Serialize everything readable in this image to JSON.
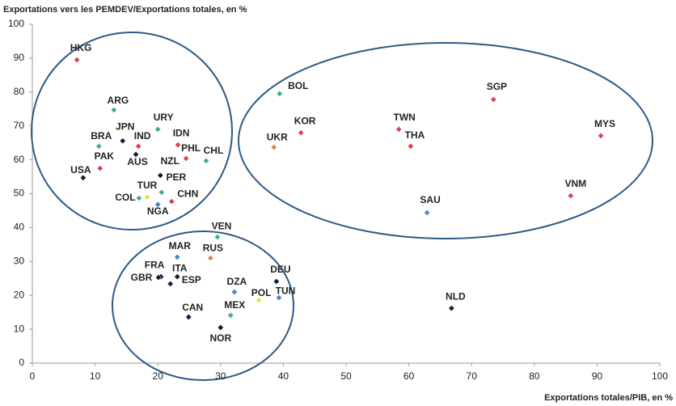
{
  "chart_data": {
    "type": "scatter",
    "y_title": "Exportations vers les PEMDEV/Exportations totales, en %",
    "x_title": "Exportations totales/PIB, en %",
    "xlim": [
      0,
      100
    ],
    "ylim": [
      0,
      100
    ],
    "xticks": [
      0,
      10,
      20,
      30,
      40,
      50,
      60,
      70,
      80,
      90,
      100
    ],
    "yticks": [
      0,
      10,
      20,
      30,
      40,
      50,
      60,
      70,
      80,
      90,
      100
    ],
    "labels": [
      "HKG",
      "ARG",
      "URY",
      "JPN",
      "IND",
      "BRA",
      "IDN",
      "PHL",
      "CHL",
      "AUS",
      "NZL",
      "PAK",
      "USA",
      "PER",
      "TUR",
      "COL",
      "CHN",
      "NGA",
      "BOL",
      "KOR",
      "UKR",
      "TWN",
      "THA",
      "SGP",
      "MYS",
      "VNM",
      "SAU",
      "VEN",
      "MAR",
      "RUS",
      "FRA",
      "GBR",
      "ITA",
      "ESP",
      "DZA",
      "DEU",
      "POL",
      "TUN",
      "CAN",
      "MEX",
      "NOR",
      "NLD"
    ],
    "x": [
      7.1,
      13.0,
      20.0,
      14.4,
      16.9,
      10.6,
      23.2,
      24.5,
      27.7,
      16.5,
      20.4,
      10.8,
      8.1,
      20.6,
      18.3,
      17.0,
      22.2,
      20.0,
      39.4,
      42.8,
      38.5,
      58.4,
      60.3,
      73.5,
      90.6,
      85.8,
      62.9,
      29.5,
      23.1,
      28.4,
      20.5,
      20.1,
      23.1,
      22.0,
      32.2,
      38.9,
      36.1,
      39.3,
      24.9,
      31.6,
      30.0,
      66.8
    ],
    "values": [
      89.5,
      74.7,
      69.0,
      65.6,
      64.0,
      64.0,
      64.4,
      60.4,
      59.7,
      61.6,
      55.4,
      57.5,
      54.7,
      50.4,
      49.0,
      48.7,
      47.7,
      46.8,
      79.5,
      68.0,
      63.7,
      69.0,
      64.0,
      77.8,
      67.1,
      49.4,
      44.4,
      37.2,
      31.3,
      31.0,
      25.5,
      25.3,
      25.5,
      23.4,
      21.0,
      24.1,
      18.6,
      19.3,
      13.6,
      14.1,
      10.5,
      16.2
    ],
    "colors": [
      "#d9434e",
      "#3fae8f",
      "#3fae8f",
      "#0d1c3d",
      "#d9434e",
      "#3fae8f",
      "#d9434e",
      "#d9434e",
      "#3fae8f",
      "#0d1c3d",
      "#0d1c3d",
      "#d9434e",
      "#0d1c3d",
      "#3fae8f",
      "#e2e23a",
      "#3fae8f",
      "#d9434e",
      "#4a86c8",
      "#3fae8f",
      "#d9434e",
      "#e0834a",
      "#d9434e",
      "#d9434e",
      "#d9434e",
      "#d9434e",
      "#d9434e",
      "#4a86c8",
      "#3fae8f",
      "#4a86c8",
      "#e0834a",
      "#0d1c3d",
      "#0d1c3d",
      "#0d1c3d",
      "#0d1c3d",
      "#4a86c8",
      "#0d1c3d",
      "#e2e23a",
      "#4a86c8",
      "#0d1c3d",
      "#3fae8f",
      "#0d1c3d",
      "#0d1c3d"
    ]
  }
}
